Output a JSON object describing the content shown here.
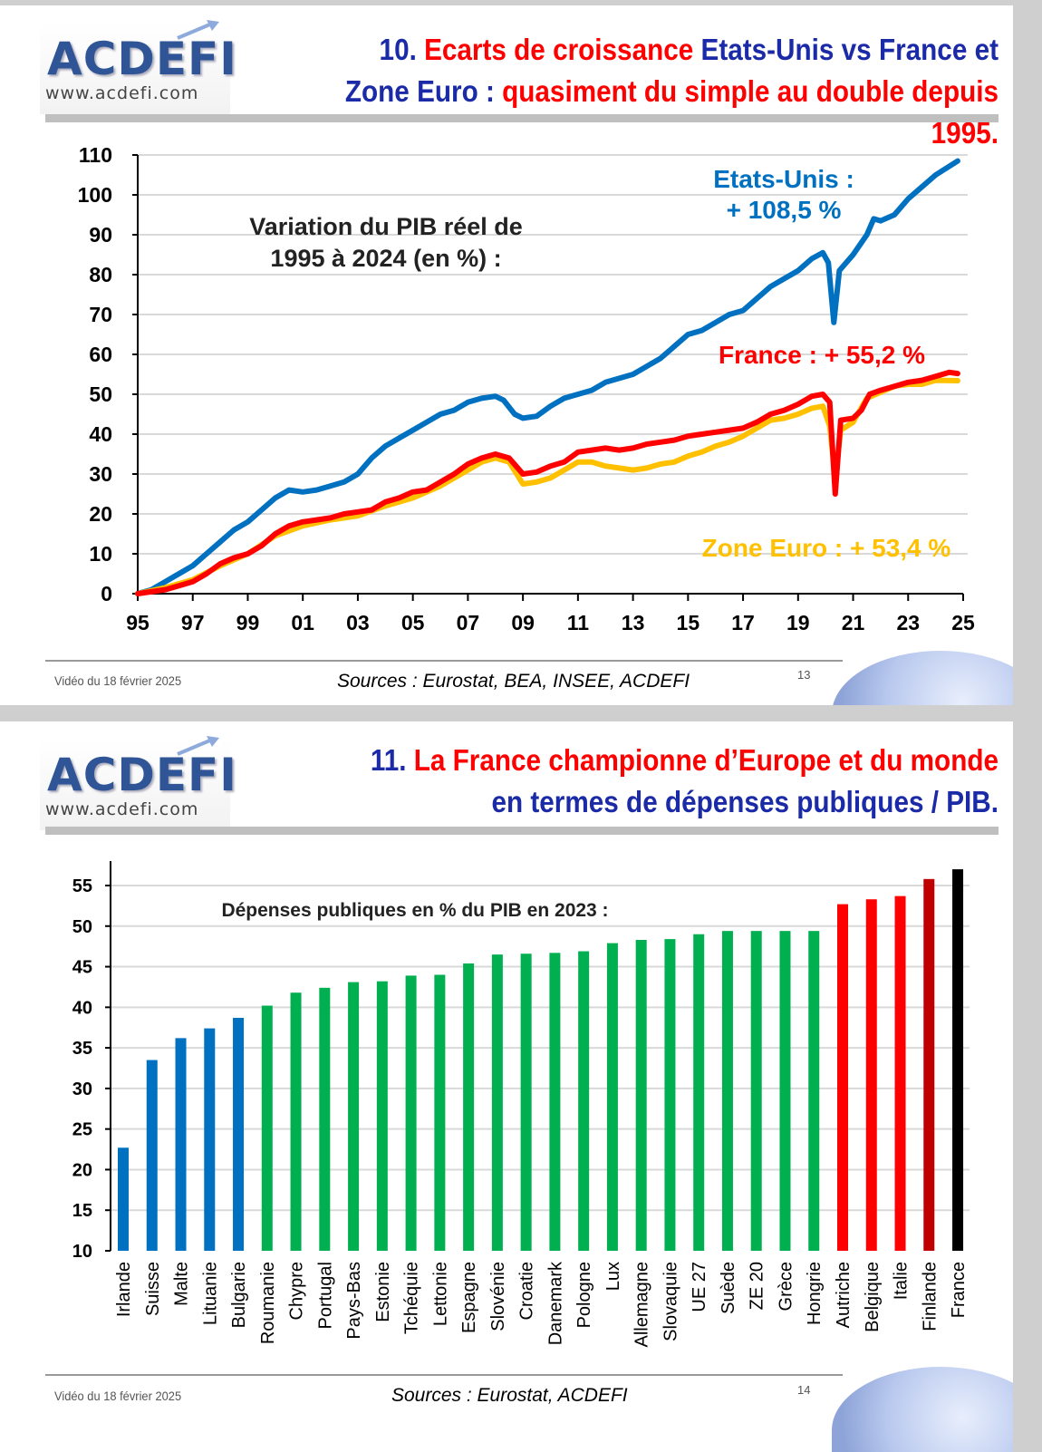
{
  "logo": {
    "brand": "ACDEFI",
    "url": "www.acdefi.com"
  },
  "slide1": {
    "title": {
      "num": "10.",
      "red1": "Ecarts de croissance",
      "blue1": "Etats-Unis vs France et Zone Euro :",
      "red2": "quasiment du simple au double depuis 1995."
    },
    "footer": {
      "video": "Vidéo du 18 février 2025",
      "sources": "Sources : Eurostat, BEA, INSEE, ACDEFI",
      "page": "13"
    }
  },
  "slide2": {
    "title": {
      "num": "11.",
      "red1": "La France championne d’Europe et du monde",
      "blue1": "en termes de dépenses publiques / PIB."
    },
    "footer": {
      "video": "Vidéo du 18 février 2025",
      "sources": "Sources : Eurostat, ACDEFI",
      "page": "14"
    }
  },
  "chart_data": [
    {
      "type": "line",
      "title": "Variation du PIB réel de 1995 à 2024 (en %) :",
      "title_lines": [
        "Variation du PIB réel de",
        "1995 à 2024 (en %) :"
      ],
      "xlim": [
        1995,
        2025
      ],
      "ylim": [
        0,
        110
      ],
      "x_ticks": [
        1995,
        1997,
        1999,
        2001,
        2003,
        2005,
        2007,
        2009,
        2011,
        2013,
        2015,
        2017,
        2019,
        2021,
        2023,
        2025
      ],
      "x_tick_labels": [
        "95",
        "97",
        "99",
        "01",
        "03",
        "05",
        "07",
        "09",
        "11",
        "13",
        "15",
        "17",
        "19",
        "21",
        "23",
        "25"
      ],
      "y_ticks": [
        0,
        10,
        20,
        30,
        40,
        50,
        60,
        70,
        80,
        90,
        100,
        110
      ],
      "grid": true,
      "series": [
        {
          "name": "Etats-Unis",
          "label_lines": [
            "Etats-Unis :",
            "+ 108,5 %"
          ],
          "color": "#0070C0",
          "points": [
            [
              1995,
              0
            ],
            [
              1995.5,
              1
            ],
            [
              1996,
              3
            ],
            [
              1996.5,
              5
            ],
            [
              1997,
              7
            ],
            [
              1997.5,
              10
            ],
            [
              1998,
              13
            ],
            [
              1998.5,
              16
            ],
            [
              1999,
              18
            ],
            [
              1999.5,
              21
            ],
            [
              2000,
              24
            ],
            [
              2000.5,
              26
            ],
            [
              2001,
              25.5
            ],
            [
              2001.5,
              26
            ],
            [
              2002,
              27
            ],
            [
              2002.5,
              28
            ],
            [
              2003,
              30
            ],
            [
              2003.5,
              34
            ],
            [
              2004,
              37
            ],
            [
              2004.5,
              39
            ],
            [
              2005,
              41
            ],
            [
              2005.5,
              43
            ],
            [
              2006,
              45
            ],
            [
              2006.5,
              46
            ],
            [
              2007,
              48
            ],
            [
              2007.5,
              49
            ],
            [
              2008,
              49.5
            ],
            [
              2008.3,
              48.5
            ],
            [
              2008.7,
              45
            ],
            [
              2009,
              44
            ],
            [
              2009.5,
              44.5
            ],
            [
              2010,
              47
            ],
            [
              2010.5,
              49
            ],
            [
              2011,
              50
            ],
            [
              2011.5,
              51
            ],
            [
              2012,
              53
            ],
            [
              2012.5,
              54
            ],
            [
              2013,
              55
            ],
            [
              2013.5,
              57
            ],
            [
              2014,
              59
            ],
            [
              2014.5,
              62
            ],
            [
              2015,
              65
            ],
            [
              2015.5,
              66
            ],
            [
              2016,
              68
            ],
            [
              2016.5,
              70
            ],
            [
              2017,
              71
            ],
            [
              2017.5,
              74
            ],
            [
              2018,
              77
            ],
            [
              2018.5,
              79
            ],
            [
              2019,
              81
            ],
            [
              2019.5,
              84
            ],
            [
              2019.9,
              85.5
            ],
            [
              2020.1,
              83
            ],
            [
              2020.3,
              68
            ],
            [
              2020.5,
              81
            ],
            [
              2021,
              85
            ],
            [
              2021.5,
              90
            ],
            [
              2021.75,
              94
            ],
            [
              2022,
              93.5
            ],
            [
              2022.5,
              95
            ],
            [
              2023,
              99
            ],
            [
              2023.5,
              102
            ],
            [
              2024,
              105
            ],
            [
              2024.8,
              108.5
            ]
          ]
        },
        {
          "name": "Zone Euro",
          "label": "Zone Euro : + 53,4 %",
          "color": "#FFC000",
          "points": [
            [
              1995,
              0
            ],
            [
              1996,
              1.5
            ],
            [
              1997,
              3.5
            ],
            [
              1998,
              7
            ],
            [
              1999,
              10
            ],
            [
              2000,
              14.5
            ],
            [
              2001,
              17
            ],
            [
              2002,
              18.5
            ],
            [
              2003,
              19.5
            ],
            [
              2004,
              22
            ],
            [
              2005,
              24
            ],
            [
              2006,
              27
            ],
            [
              2007,
              31
            ],
            [
              2007.5,
              33
            ],
            [
              2008,
              34
            ],
            [
              2008.5,
              33
            ],
            [
              2009,
              27.5
            ],
            [
              2009.5,
              28
            ],
            [
              2010,
              29
            ],
            [
              2010.5,
              31
            ],
            [
              2011,
              33
            ],
            [
              2011.5,
              33
            ],
            [
              2012,
              32
            ],
            [
              2012.5,
              31.5
            ],
            [
              2013,
              31
            ],
            [
              2013.5,
              31.5
            ],
            [
              2014,
              32.5
            ],
            [
              2014.5,
              33
            ],
            [
              2015,
              34.5
            ],
            [
              2015.5,
              35.5
            ],
            [
              2016,
              37
            ],
            [
              2016.5,
              38
            ],
            [
              2017,
              39.5
            ],
            [
              2017.5,
              41.5
            ],
            [
              2018,
              43.5
            ],
            [
              2018.5,
              44
            ],
            [
              2019,
              45
            ],
            [
              2019.5,
              46.5
            ],
            [
              2019.9,
              47
            ],
            [
              2020.15,
              42
            ],
            [
              2020.35,
              29
            ],
            [
              2020.55,
              41
            ],
            [
              2021,
              43
            ],
            [
              2021.5,
              49
            ],
            [
              2022,
              50.5
            ],
            [
              2022.5,
              52
            ],
            [
              2023,
              52.5
            ],
            [
              2023.5,
              52.5
            ],
            [
              2024,
              53.5
            ],
            [
              2024.8,
              53.4
            ]
          ]
        },
        {
          "name": "France",
          "label": "France : + 55,2 %",
          "color": "#FF0000",
          "points": [
            [
              1995,
              0
            ],
            [
              1996,
              1
            ],
            [
              1996.5,
              2
            ],
            [
              1997,
              3
            ],
            [
              1997.5,
              5
            ],
            [
              1998,
              7.5
            ],
            [
              1998.5,
              9
            ],
            [
              1999,
              10
            ],
            [
              1999.5,
              12
            ],
            [
              2000,
              15
            ],
            [
              2000.5,
              17
            ],
            [
              2001,
              18
            ],
            [
              2001.5,
              18.5
            ],
            [
              2002,
              19
            ],
            [
              2002.5,
              20
            ],
            [
              2003,
              20.5
            ],
            [
              2003.5,
              21
            ],
            [
              2004,
              23
            ],
            [
              2004.5,
              24
            ],
            [
              2005,
              25.5
            ],
            [
              2005.5,
              26
            ],
            [
              2006,
              28
            ],
            [
              2006.5,
              30
            ],
            [
              2007,
              32.5
            ],
            [
              2007.5,
              34
            ],
            [
              2008,
              35
            ],
            [
              2008.5,
              34
            ],
            [
              2009,
              30
            ],
            [
              2009.5,
              30.5
            ],
            [
              2010,
              32
            ],
            [
              2010.5,
              33
            ],
            [
              2011,
              35.5
            ],
            [
              2011.5,
              36
            ],
            [
              2012,
              36.5
            ],
            [
              2012.5,
              36
            ],
            [
              2013,
              36.5
            ],
            [
              2013.5,
              37.5
            ],
            [
              2014,
              38
            ],
            [
              2014.5,
              38.5
            ],
            [
              2015,
              39.5
            ],
            [
              2015.5,
              40
            ],
            [
              2016,
              40.5
            ],
            [
              2016.5,
              41
            ],
            [
              2017,
              41.5
            ],
            [
              2017.5,
              43
            ],
            [
              2018,
              45
            ],
            [
              2018.5,
              46
            ],
            [
              2019,
              47.5
            ],
            [
              2019.5,
              49.5
            ],
            [
              2019.9,
              50
            ],
            [
              2020.15,
              48
            ],
            [
              2020.35,
              25
            ],
            [
              2020.55,
              43.5
            ],
            [
              2021,
              44
            ],
            [
              2021.3,
              46
            ],
            [
              2021.6,
              50
            ],
            [
              2022,
              51
            ],
            [
              2022.5,
              52
            ],
            [
              2023,
              53
            ],
            [
              2023.5,
              53.5
            ],
            [
              2024,
              54.5
            ],
            [
              2024.5,
              55.5
            ],
            [
              2024.8,
              55.2
            ]
          ]
        }
      ]
    },
    {
      "type": "bar",
      "title": "Dépenses publiques en % du PIB en 2023 :",
      "ylim": [
        10,
        57
      ],
      "y_ticks": [
        10,
        15,
        20,
        25,
        30,
        35,
        40,
        45,
        50,
        55
      ],
      "grid": true,
      "categories": [
        "Irlande",
        "Suisse",
        "Malte",
        "Lituanie",
        "Bulgarie",
        "Roumanie",
        "Chypre",
        "Portugal",
        "Pays-Bas",
        "Estonie",
        "Tchéquie",
        "Lettonie",
        "Espagne",
        "Slovénie",
        "Croatie",
        "Danemark",
        "Pologne",
        "Lux",
        "Allemagne",
        "Slovaquie",
        "UE 27",
        "Suède",
        "ZE 20",
        "Grèce",
        "Hongrie",
        "Autriche",
        "Belgique",
        "Italie",
        "Finlande",
        "France"
      ],
      "values": [
        22.7,
        33.5,
        36.2,
        37.4,
        38.7,
        40.2,
        41.8,
        42.4,
        43.1,
        43.2,
        43.9,
        44.0,
        45.4,
        46.5,
        46.6,
        46.7,
        46.9,
        47.9,
        48.3,
        48.4,
        49.0,
        49.4,
        49.4,
        49.4,
        49.4,
        52.7,
        53.3,
        53.7,
        55.8,
        57.0
      ],
      "colors": [
        "#0070C0",
        "#0070C0",
        "#0070C0",
        "#0070C0",
        "#0070C0",
        "#00B050",
        "#00B050",
        "#00B050",
        "#00B050",
        "#00B050",
        "#00B050",
        "#00B050",
        "#00B050",
        "#00B050",
        "#00B050",
        "#00B050",
        "#00B050",
        "#00B050",
        "#00B050",
        "#00B050",
        "#00B050",
        "#00B050",
        "#00B050",
        "#00B050",
        "#00B050",
        "#FF0000",
        "#FF0000",
        "#FF0000",
        "#C00000",
        "#000000"
      ]
    }
  ]
}
